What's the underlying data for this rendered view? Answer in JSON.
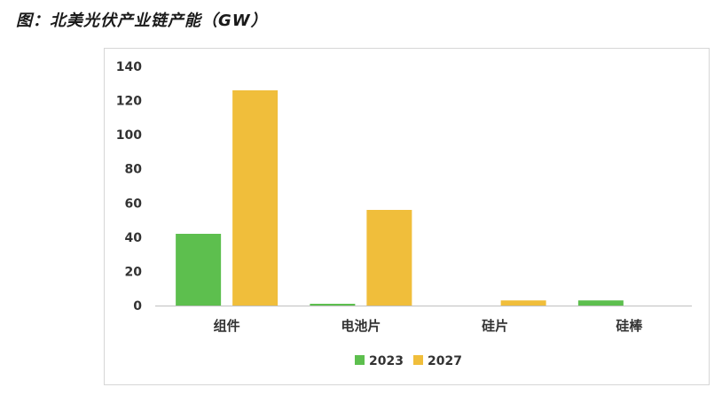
{
  "figure": {
    "title": "图：北美光伏产业链产能（GW）"
  },
  "colors": {
    "s2023": "#5dbf4e",
    "s2027": "#f0be3b",
    "axis": "#bfbfbf"
  },
  "chart_data": {
    "type": "bar",
    "title": "图：北美光伏产业链产能（GW）",
    "categories": [
      "组件",
      "电池片",
      "硅片",
      "硅棒"
    ],
    "series": [
      {
        "name": "2023",
        "values": [
          42,
          1,
          0,
          3
        ]
      },
      {
        "name": "2027",
        "values": [
          126,
          56,
          3,
          0
        ]
      }
    ],
    "yticks": [
      0,
      20,
      40,
      60,
      80,
      100,
      120,
      140
    ],
    "ylim": [
      0,
      140
    ],
    "grid": false,
    "legend": "bottom"
  }
}
